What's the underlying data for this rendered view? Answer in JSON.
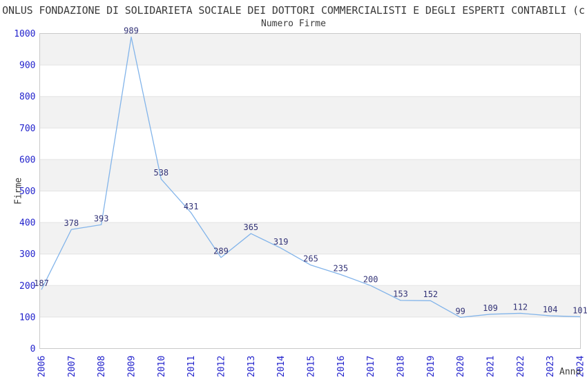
{
  "header": {
    "title": "ONLUS FONDAZIONE DI SOLIDARIETA SOCIALE DEI DOTTORI COMMERCIALISTI E DEGLI ESPERTI CONTABILI (c",
    "subtitle": "Numero Firme"
  },
  "chart_data": {
    "type": "line",
    "title": "Numero Firme",
    "xlabel": "Anno",
    "ylabel": "Firme",
    "categories": [
      "2006",
      "2007",
      "2008",
      "2009",
      "2010",
      "2011",
      "2012",
      "2013",
      "2014",
      "2015",
      "2016",
      "2017",
      "2018",
      "2019",
      "2020",
      "2021",
      "2022",
      "2023",
      "2024"
    ],
    "values": [
      187,
      378,
      393,
      989,
      538,
      431,
      289,
      365,
      319,
      265,
      235,
      200,
      153,
      152,
      99,
      109,
      112,
      104,
      101
    ],
    "ylim": [
      0,
      1000
    ],
    "ytick_step": 100,
    "grid": true,
    "band_style": "alternating horizontal bands, gray topmost",
    "point_labels_visible": true,
    "legend": "none",
    "colors": {
      "line": "#82b4ea",
      "data_label": "#333377",
      "tick_label": "#2222cc",
      "band_gray": "#f2f2f2",
      "band_white": "#ffffff",
      "gridline": "#e3e3e3",
      "plot_border": "#c9c9c9",
      "title_text": "#3a3a3a"
    }
  }
}
